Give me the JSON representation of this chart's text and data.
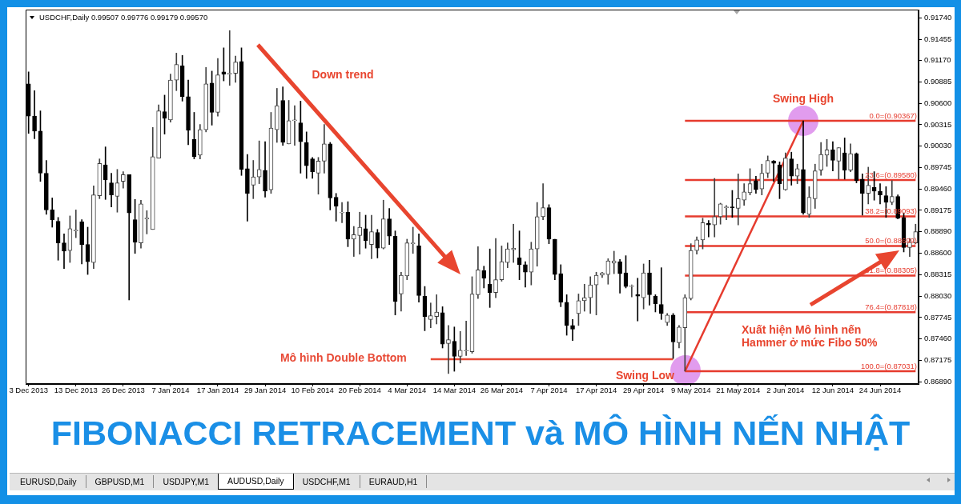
{
  "chart_data": {
    "type": "candlestick",
    "title": "FIBONACCI RETRACEMENT và MÔ HÌNH NẾN NHẬT",
    "categories": [
      "3 Dec 2013",
      null,
      null,
      null,
      null,
      null,
      null,
      null,
      "13 Dec 2013",
      null,
      null,
      null,
      null,
      null,
      null,
      null,
      "26 Dec 2013",
      null,
      null,
      null,
      null,
      null,
      null,
      null,
      "7 Jan 2014",
      null,
      null,
      null,
      null,
      null,
      null,
      null,
      "17 Jan 2014",
      null,
      null,
      null,
      null,
      null,
      null,
      null,
      "29 Jan 2014",
      null,
      null,
      null,
      null,
      null,
      null,
      null,
      "10 Feb 2014",
      null,
      null,
      null,
      null,
      null,
      null,
      null,
      "20 Feb 2014",
      null,
      null,
      null,
      null,
      null,
      null,
      null,
      "4 Mar 2014",
      null,
      null,
      null,
      null,
      null,
      null,
      null,
      "14 Mar 2014",
      null,
      null,
      null,
      null,
      null,
      null,
      null,
      "26 Mar 2014",
      null,
      null,
      null,
      null,
      null,
      null,
      null,
      "7 Apr 2014",
      null,
      null,
      null,
      null,
      null,
      null,
      null,
      "17 Apr 2014",
      null,
      null,
      null,
      null,
      null,
      null,
      null,
      "29 Apr 2014",
      null,
      null,
      null,
      null,
      null,
      null,
      null,
      "9 May 2014",
      null,
      null,
      null,
      null,
      null,
      null,
      null,
      "21 May 2014",
      null,
      null,
      null,
      null,
      null,
      null,
      null,
      "2 Jun 2014",
      null,
      null,
      null,
      null,
      null,
      null,
      null,
      "12 Jun 2014",
      null,
      null,
      null,
      null,
      null,
      null,
      null,
      "24 Jun 2014",
      null,
      null,
      null,
      null,
      null,
      null
    ],
    "ohlc": [
      [
        0.9086,
        0.9102,
        0.902,
        0.9043
      ],
      [
        0.9043,
        0.9077,
        0.9013,
        0.9023
      ],
      [
        0.9023,
        0.905,
        0.8956,
        0.8967
      ],
      [
        0.8967,
        0.8984,
        0.8912,
        0.8918
      ],
      [
        0.8918,
        0.8934,
        0.8895,
        0.8905
      ],
      [
        0.8903,
        0.8908,
        0.8851,
        0.8874
      ],
      [
        0.8874,
        0.8886,
        0.884,
        0.8863
      ],
      [
        0.8864,
        0.891,
        0.8848,
        0.8893
      ],
      [
        0.889,
        0.8918,
        0.8881,
        0.889
      ],
      [
        0.8902,
        0.8905,
        0.8846,
        0.8872
      ],
      [
        0.8872,
        0.8895,
        0.8832,
        0.8849
      ],
      [
        0.8848,
        0.895,
        0.884,
        0.8938
      ],
      [
        0.8937,
        0.8986,
        0.8933,
        0.898
      ],
      [
        0.8978,
        0.9002,
        0.8932,
        0.8958
      ],
      [
        0.8954,
        0.8967,
        0.8922,
        0.8938
      ],
      [
        0.8936,
        0.8972,
        0.8915,
        0.8954
      ],
      [
        0.8956,
        0.8969,
        0.8947,
        0.8965
      ],
      [
        0.8965,
        0.8965,
        0.8798,
        0.8914
      ],
      [
        0.8905,
        0.8932,
        0.886,
        0.8875
      ],
      [
        0.8874,
        0.8931,
        0.8867,
        0.8926
      ],
      [
        0.8906,
        0.8917,
        0.8886,
        0.8906
      ],
      [
        0.8892,
        0.9028,
        0.8892,
        0.8989
      ],
      [
        0.8987,
        0.9058,
        0.8987,
        0.905
      ],
      [
        0.9049,
        0.9071,
        0.9019,
        0.904
      ],
      [
        0.9038,
        0.9099,
        0.9035,
        0.9091
      ],
      [
        0.9091,
        0.9127,
        0.9077,
        0.9112
      ],
      [
        0.911,
        0.9124,
        0.9063,
        0.9069
      ],
      [
        0.9069,
        0.9091,
        0.9005,
        0.9024
      ],
      [
        0.9012,
        0.9048,
        0.8986,
        0.8989
      ],
      [
        0.8991,
        0.9032,
        0.8986,
        0.9025
      ],
      [
        0.9025,
        0.9108,
        0.9022,
        0.9086
      ],
      [
        0.9087,
        0.9103,
        0.9031,
        0.9048
      ],
      [
        0.9048,
        0.912,
        0.9043,
        0.9098
      ],
      [
        0.9102,
        0.9134,
        0.909,
        0.9099
      ],
      [
        0.9099,
        0.9157,
        0.9084,
        0.9099
      ],
      [
        0.91,
        0.9123,
        0.9088,
        0.9115
      ],
      [
        0.9116,
        0.9134,
        0.8964,
        0.8972
      ],
      [
        0.8973,
        0.8992,
        0.8903,
        0.894
      ],
      [
        0.8951,
        0.8984,
        0.8933,
        0.8962
      ],
      [
        0.8962,
        0.901,
        0.8953,
        0.8972
      ],
      [
        0.8971,
        0.9009,
        0.8935,
        0.8943
      ],
      [
        0.8945,
        0.9048,
        0.894,
        0.9027
      ],
      [
        0.9025,
        0.908,
        0.9008,
        0.9057
      ],
      [
        0.9064,
        0.9082,
        0.9004,
        0.9008
      ],
      [
        0.9006,
        0.9064,
        0.9006,
        0.9037
      ],
      [
        0.9037,
        0.9057,
        0.9004,
        0.9037
      ],
      [
        0.9034,
        0.9063,
        0.8967,
        0.9009
      ],
      [
        0.9008,
        0.9022,
        0.896,
        0.8977
      ],
      [
        0.8986,
        0.8988,
        0.896,
        0.8969
      ],
      [
        0.8967,
        0.8988,
        0.8939,
        0.8983
      ],
      [
        0.8983,
        0.9032,
        0.8967,
        0.9006
      ],
      [
        0.9006,
        0.9008,
        0.8918,
        0.8934
      ],
      [
        0.8935,
        0.894,
        0.8903,
        0.8923
      ],
      [
        0.8914,
        0.8928,
        0.8901,
        0.8914
      ],
      [
        0.8915,
        0.8929,
        0.8869,
        0.8879
      ],
      [
        0.8879,
        0.8896,
        0.8856,
        0.8885
      ],
      [
        0.8884,
        0.8915,
        0.8859,
        0.8895
      ],
      [
        0.8893,
        0.8911,
        0.8867,
        0.8877
      ],
      [
        0.8872,
        0.8911,
        0.8853,
        0.8889
      ],
      [
        0.8888,
        0.8892,
        0.8854,
        0.8867
      ],
      [
        0.8867,
        0.8931,
        0.8866,
        0.8906
      ],
      [
        0.8906,
        0.892,
        0.8872,
        0.8883
      ],
      [
        0.8883,
        0.889,
        0.8778,
        0.8796
      ],
      [
        0.8806,
        0.8835,
        0.8783,
        0.8831
      ],
      [
        0.883,
        0.8879,
        0.8825,
        0.8874
      ],
      [
        0.8873,
        0.8895,
        0.886,
        0.8873
      ],
      [
        0.887,
        0.8886,
        0.8795,
        0.8804
      ],
      [
        0.8803,
        0.8816,
        0.8757,
        0.8776
      ],
      [
        0.8772,
        0.8794,
        0.8761,
        0.8777
      ],
      [
        0.8776,
        0.8805,
        0.8766,
        0.8782
      ],
      [
        0.8781,
        0.8789,
        0.8734,
        0.8739
      ],
      [
        0.874,
        0.8764,
        0.87,
        0.8745
      ],
      [
        0.8743,
        0.8762,
        0.8703,
        0.8723
      ],
      [
        0.8723,
        0.8756,
        0.8714,
        0.8731
      ],
      [
        0.873,
        0.877,
        0.8724,
        0.873
      ],
      [
        0.8729,
        0.8829,
        0.8727,
        0.8806
      ],
      [
        0.8805,
        0.8869,
        0.88,
        0.8838
      ],
      [
        0.8837,
        0.8843,
        0.8814,
        0.8827
      ],
      [
        0.8819,
        0.8866,
        0.8788,
        0.8808
      ],
      [
        0.8808,
        0.888,
        0.8801,
        0.8825
      ],
      [
        0.8825,
        0.887,
        0.8823,
        0.8849
      ],
      [
        0.8848,
        0.8874,
        0.8841,
        0.8866
      ],
      [
        0.8865,
        0.8899,
        0.8848,
        0.8867
      ],
      [
        0.8854,
        0.889,
        0.8825,
        0.8845
      ],
      [
        0.8845,
        0.8849,
        0.8815,
        0.8835
      ],
      [
        0.8835,
        0.8875,
        0.8818,
        0.8866
      ],
      [
        0.8866,
        0.8928,
        0.8843,
        0.8909
      ],
      [
        0.8909,
        0.8953,
        0.8905,
        0.8921
      ],
      [
        0.8921,
        0.8925,
        0.8873,
        0.8879
      ],
      [
        0.8879,
        0.8879,
        0.8825,
        0.8832
      ],
      [
        0.8833,
        0.8845,
        0.8789,
        0.8795
      ],
      [
        0.8795,
        0.8805,
        0.8751,
        0.8764
      ],
      [
        0.8764,
        0.8772,
        0.8744,
        0.8759
      ],
      [
        0.878,
        0.8806,
        0.8764,
        0.8797
      ],
      [
        0.8797,
        0.8819,
        0.8783,
        0.8801
      ],
      [
        0.8801,
        0.8829,
        0.878,
        0.8818
      ],
      [
        0.8818,
        0.8835,
        0.8778,
        0.8831
      ],
      [
        0.8831,
        0.8835,
        0.8828,
        0.8834
      ],
      [
        0.8832,
        0.8853,
        0.8819,
        0.885
      ],
      [
        0.8847,
        0.8863,
        0.8833,
        0.885
      ],
      [
        0.8849,
        0.8852,
        0.8807,
        0.8833
      ],
      [
        0.8834,
        0.8857,
        0.8814,
        0.8816
      ],
      [
        0.8816,
        0.8818,
        0.8802,
        0.8816
      ],
      [
        0.8805,
        0.8827,
        0.877,
        0.8803
      ],
      [
        0.8801,
        0.8846,
        0.8786,
        0.8834
      ],
      [
        0.8834,
        0.8851,
        0.8791,
        0.8805
      ],
      [
        0.8803,
        0.8805,
        0.8782,
        0.8793
      ],
      [
        0.8792,
        0.8841,
        0.8772,
        0.878
      ],
      [
        0.8768,
        0.878,
        0.8764,
        0.8778
      ],
      [
        0.8778,
        0.878,
        0.872,
        0.8742
      ],
      [
        0.8741,
        0.8764,
        0.8734,
        0.8762
      ],
      [
        0.8761,
        0.8805,
        0.87031,
        0.8801
      ],
      [
        0.88,
        0.8873,
        0.8798,
        0.8864
      ],
      [
        0.8864,
        0.8882,
        0.8859,
        0.8878
      ],
      [
        0.8878,
        0.8907,
        0.8866,
        0.8901
      ],
      [
        0.89,
        0.8904,
        0.8882,
        0.8898
      ],
      [
        0.8898,
        0.896,
        0.8882,
        0.8909
      ],
      [
        0.8909,
        0.8927,
        0.8899,
        0.8926
      ],
      [
        0.8921,
        0.8924,
        0.8905,
        0.8922
      ],
      [
        0.8922,
        0.8944,
        0.8908,
        0.8921
      ],
      [
        0.892,
        0.8966,
        0.8898,
        0.8933
      ],
      [
        0.8931,
        0.8953,
        0.8924,
        0.8942
      ],
      [
        0.8941,
        0.8973,
        0.8938,
        0.8953
      ],
      [
        0.8957,
        0.8963,
        0.894,
        0.8945
      ],
      [
        0.8946,
        0.8979,
        0.8938,
        0.8967
      ],
      [
        0.8967,
        0.899,
        0.8961,
        0.8984
      ],
      [
        0.8983,
        0.8984,
        0.8956,
        0.898
      ],
      [
        0.8978,
        0.8982,
        0.8933,
        0.8953
      ],
      [
        0.8945,
        0.8994,
        0.8944,
        0.8987
      ],
      [
        0.8986,
        0.8995,
        0.8951,
        0.8963
      ],
      [
        0.8963,
        0.8979,
        0.8953,
        0.8973
      ],
      [
        0.8972,
        0.90367,
        0.8912,
        0.8914
      ],
      [
        0.8912,
        0.8949,
        0.8908,
        0.8935
      ],
      [
        0.8933,
        0.8979,
        0.892,
        0.897
      ],
      [
        0.8971,
        0.9008,
        0.8964,
        0.8992
      ],
      [
        0.8991,
        0.9012,
        0.8976,
        0.8998
      ],
      [
        0.8998,
        0.9009,
        0.897,
        0.8984
      ],
      [
        0.8983,
        0.9001,
        0.8959,
        0.9001
      ],
      [
        0.8994,
        0.9014,
        0.8959,
        0.8971
      ],
      [
        0.8971,
        0.9006,
        0.8969,
        0.8993
      ],
      [
        0.8993,
        0.8994,
        0.8954,
        0.8957
      ],
      [
        0.8959,
        0.8966,
        0.8911,
        0.894
      ],
      [
        0.894,
        0.8975,
        0.8926,
        0.8951
      ],
      [
        0.8948,
        0.8969,
        0.8931,
        0.8943
      ],
      [
        0.8943,
        0.8953,
        0.8926,
        0.8938
      ],
      [
        0.8937,
        0.8949,
        0.8908,
        0.8928
      ],
      [
        0.8928,
        0.8957,
        0.8925,
        0.8936
      ],
      [
        0.8936,
        0.8938,
        0.8906,
        0.8907
      ],
      [
        0.8908,
        0.8914,
        0.8862,
        0.8868
      ],
      [
        0.8868,
        0.888,
        0.8856,
        0.8875
      ],
      [
        0.8874,
        0.8899,
        0.8873,
        0.8889
      ]
    ],
    "series": [
      {
        "type": "line",
        "name": "0.0=(0.90367)",
        "color": "#e63b2e",
        "values": [
          null,
          null,
          null,
          null,
          null,
          null,
          null,
          null,
          null,
          null,
          null,
          null,
          null,
          null,
          null,
          null,
          null,
          null,
          null,
          null,
          null,
          null,
          null,
          null,
          null,
          null,
          null,
          null,
          null,
          null,
          null,
          null,
          null,
          null,
          null,
          null,
          null,
          null,
          null,
          null,
          null,
          null,
          null,
          null,
          null,
          null,
          null,
          null,
          null,
          null,
          null,
          null,
          null,
          null,
          null,
          null,
          null,
          null,
          null,
          null,
          null,
          null,
          null,
          null,
          null,
          null,
          null,
          null,
          null,
          null,
          null,
          null,
          null,
          null,
          null,
          null,
          null,
          null,
          null,
          null,
          null,
          null,
          null,
          null,
          null,
          null,
          null,
          null,
          null,
          null,
          null,
          null,
          null,
          null,
          null,
          null,
          null,
          null,
          null,
          null,
          null,
          null,
          null,
          null,
          null,
          null,
          null,
          null,
          null,
          null,
          null,
          0.90367,
          0.90367,
          0.90367,
          0.90367,
          0.90367,
          0.90367,
          0.90367,
          0.90367,
          0.90367,
          0.90367,
          0.90367,
          0.90367,
          0.90367,
          0.90367,
          0.90367,
          0.90367,
          0.90367,
          0.90367,
          0.90367,
          0.90367,
          0.90367,
          0.90367,
          0.90367,
          0.90367,
          0.90367,
          0.90367,
          0.90367,
          0.90367,
          0.90367,
          0.90367,
          0.90367,
          0.90367,
          0.90367,
          0.90367,
          0.90367,
          0.90367,
          0.90367,
          0.90367,
          0.90367,
          0.90367
        ]
      },
      {
        "type": "line",
        "name": "23.6=(0.89580)",
        "color": "#e63b2e",
        "values": [
          null,
          null,
          null,
          null,
          null,
          null,
          null,
          null,
          null,
          null,
          null,
          null,
          null,
          null,
          null,
          null,
          null,
          null,
          null,
          null,
          null,
          null,
          null,
          null,
          null,
          null,
          null,
          null,
          null,
          null,
          null,
          null,
          null,
          null,
          null,
          null,
          null,
          null,
          null,
          null,
          null,
          null,
          null,
          null,
          null,
          null,
          null,
          null,
          null,
          null,
          null,
          null,
          null,
          null,
          null,
          null,
          null,
          null,
          null,
          null,
          null,
          null,
          null,
          null,
          null,
          null,
          null,
          null,
          null,
          null,
          null,
          null,
          null,
          null,
          null,
          null,
          null,
          null,
          null,
          null,
          null,
          null,
          null,
          null,
          null,
          null,
          null,
          null,
          null,
          null,
          null,
          null,
          null,
          null,
          null,
          null,
          null,
          null,
          null,
          null,
          null,
          null,
          null,
          null,
          null,
          null,
          null,
          null,
          null,
          null,
          null,
          0.8958,
          0.8958,
          0.8958,
          0.8958,
          0.8958,
          0.8958,
          0.8958,
          0.8958,
          0.8958,
          0.8958,
          0.8958,
          0.8958,
          0.8958,
          0.8958,
          0.8958,
          0.8958,
          0.8958,
          0.8958,
          0.8958,
          0.8958,
          0.8958,
          0.8958,
          0.8958,
          0.8958,
          0.8958,
          0.8958,
          0.8958,
          0.8958,
          0.8958,
          0.8958,
          0.8958,
          0.8958,
          0.8958,
          0.8958,
          0.8958,
          0.8958,
          0.8958,
          0.8958,
          0.8958,
          0.8958
        ]
      },
      {
        "type": "line",
        "name": "38.2=(0.89093)",
        "color": "#e63b2e",
        "values": [
          null,
          null,
          null,
          null,
          null,
          null,
          null,
          null,
          null,
          null,
          null,
          null,
          null,
          null,
          null,
          null,
          null,
          null,
          null,
          null,
          null,
          null,
          null,
          null,
          null,
          null,
          null,
          null,
          null,
          null,
          null,
          null,
          null,
          null,
          null,
          null,
          null,
          null,
          null,
          null,
          null,
          null,
          null,
          null,
          null,
          null,
          null,
          null,
          null,
          null,
          null,
          null,
          null,
          null,
          null,
          null,
          null,
          null,
          null,
          null,
          null,
          null,
          null,
          null,
          null,
          null,
          null,
          null,
          null,
          null,
          null,
          null,
          null,
          null,
          null,
          null,
          null,
          null,
          null,
          null,
          null,
          null,
          null,
          null,
          null,
          null,
          null,
          null,
          null,
          null,
          null,
          null,
          null,
          null,
          null,
          null,
          null,
          null,
          null,
          null,
          null,
          null,
          null,
          null,
          null,
          null,
          null,
          null,
          null,
          null,
          null,
          0.89093,
          0.89093,
          0.89093,
          0.89093,
          0.89093,
          0.89093,
          0.89093,
          0.89093,
          0.89093,
          0.89093,
          0.89093,
          0.89093,
          0.89093,
          0.89093,
          0.89093,
          0.89093,
          0.89093,
          0.89093,
          0.89093,
          0.89093,
          0.89093,
          0.89093,
          0.89093,
          0.89093,
          0.89093,
          0.89093,
          0.89093,
          0.89093,
          0.89093,
          0.89093,
          0.89093,
          0.89093,
          0.89093,
          0.89093,
          0.89093,
          0.89093,
          0.89093,
          0.89093,
          0.89093,
          0.89093
        ]
      },
      {
        "type": "line",
        "name": "50.0=(0.88699)",
        "color": "#e63b2e",
        "values": [
          null,
          null,
          null,
          null,
          null,
          null,
          null,
          null,
          null,
          null,
          null,
          null,
          null,
          null,
          null,
          null,
          null,
          null,
          null,
          null,
          null,
          null,
          null,
          null,
          null,
          null,
          null,
          null,
          null,
          null,
          null,
          null,
          null,
          null,
          null,
          null,
          null,
          null,
          null,
          null,
          null,
          null,
          null,
          null,
          null,
          null,
          null,
          null,
          null,
          null,
          null,
          null,
          null,
          null,
          null,
          null,
          null,
          null,
          null,
          null,
          null,
          null,
          null,
          null,
          null,
          null,
          null,
          null,
          null,
          null,
          null,
          null,
          null,
          null,
          null,
          null,
          null,
          null,
          null,
          null,
          null,
          null,
          null,
          null,
          null,
          null,
          null,
          null,
          null,
          null,
          null,
          null,
          null,
          null,
          null,
          null,
          null,
          null,
          null,
          null,
          null,
          null,
          null,
          null,
          null,
          null,
          null,
          null,
          null,
          null,
          null,
          0.88699,
          0.88699,
          0.88699,
          0.88699,
          0.88699,
          0.88699,
          0.88699,
          0.88699,
          0.88699,
          0.88699,
          0.88699,
          0.88699,
          0.88699,
          0.88699,
          0.88699,
          0.88699,
          0.88699,
          0.88699,
          0.88699,
          0.88699,
          0.88699,
          0.88699,
          0.88699,
          0.88699,
          0.88699,
          0.88699,
          0.88699,
          0.88699,
          0.88699,
          0.88699,
          0.88699,
          0.88699,
          0.88699,
          0.88699,
          0.88699,
          0.88699,
          0.88699,
          0.88699,
          0.88699,
          0.88699
        ]
      },
      {
        "type": "line",
        "name": "61.8=(0.88305)",
        "color": "#e63b2e",
        "values": [
          null,
          null,
          null,
          null,
          null,
          null,
          null,
          null,
          null,
          null,
          null,
          null,
          null,
          null,
          null,
          null,
          null,
          null,
          null,
          null,
          null,
          null,
          null,
          null,
          null,
          null,
          null,
          null,
          null,
          null,
          null,
          null,
          null,
          null,
          null,
          null,
          null,
          null,
          null,
          null,
          null,
          null,
          null,
          null,
          null,
          null,
          null,
          null,
          null,
          null,
          null,
          null,
          null,
          null,
          null,
          null,
          null,
          null,
          null,
          null,
          null,
          null,
          null,
          null,
          null,
          null,
          null,
          null,
          null,
          null,
          null,
          null,
          null,
          null,
          null,
          null,
          null,
          null,
          null,
          null,
          null,
          null,
          null,
          null,
          null,
          null,
          null,
          null,
          null,
          null,
          null,
          null,
          null,
          null,
          null,
          null,
          null,
          null,
          null,
          null,
          null,
          null,
          null,
          null,
          null,
          null,
          null,
          null,
          null,
          null,
          null,
          0.88305,
          0.88305,
          0.88305,
          0.88305,
          0.88305,
          0.88305,
          0.88305,
          0.88305,
          0.88305,
          0.88305,
          0.88305,
          0.88305,
          0.88305,
          0.88305,
          0.88305,
          0.88305,
          0.88305,
          0.88305,
          0.88305,
          0.88305,
          0.88305,
          0.88305,
          0.88305,
          0.88305,
          0.88305,
          0.88305,
          0.88305,
          0.88305,
          0.88305,
          0.88305,
          0.88305,
          0.88305,
          0.88305,
          0.88305,
          0.88305,
          0.88305,
          0.88305,
          0.88305,
          0.88305,
          0.88305
        ]
      },
      {
        "type": "line",
        "name": "76.4=(0.87818)",
        "color": "#e63b2e",
        "values": [
          null,
          null,
          null,
          null,
          null,
          null,
          null,
          null,
          null,
          null,
          null,
          null,
          null,
          null,
          null,
          null,
          null,
          null,
          null,
          null,
          null,
          null,
          null,
          null,
          null,
          null,
          null,
          null,
          null,
          null,
          null,
          null,
          null,
          null,
          null,
          null,
          null,
          null,
          null,
          null,
          null,
          null,
          null,
          null,
          null,
          null,
          null,
          null,
          null,
          null,
          null,
          null,
          null,
          null,
          null,
          null,
          null,
          null,
          null,
          null,
          null,
          null,
          null,
          null,
          null,
          null,
          null,
          null,
          null,
          null,
          null,
          null,
          null,
          null,
          null,
          null,
          null,
          null,
          null,
          null,
          null,
          null,
          null,
          null,
          null,
          null,
          null,
          null,
          null,
          null,
          null,
          null,
          null,
          null,
          null,
          null,
          null,
          null,
          null,
          null,
          null,
          null,
          null,
          null,
          null,
          null,
          null,
          null,
          null,
          null,
          null,
          0.87818,
          0.87818,
          0.87818,
          0.87818,
          0.87818,
          0.87818,
          0.87818,
          0.87818,
          0.87818,
          0.87818,
          0.87818,
          0.87818,
          0.87818,
          0.87818,
          0.87818,
          0.87818,
          0.87818,
          0.87818,
          0.87818,
          0.87818,
          0.87818,
          0.87818,
          0.87818,
          0.87818,
          0.87818,
          0.87818,
          0.87818,
          0.87818,
          0.87818,
          0.87818,
          0.87818,
          0.87818,
          0.87818,
          0.87818,
          0.87818,
          0.87818,
          0.87818,
          0.87818,
          0.87818,
          0.87818
        ]
      },
      {
        "type": "line",
        "name": "100.0=(0.87031)",
        "color": "#e63b2e",
        "values": [
          null,
          null,
          null,
          null,
          null,
          null,
          null,
          null,
          null,
          null,
          null,
          null,
          null,
          null,
          null,
          null,
          null,
          null,
          null,
          null,
          null,
          null,
          null,
          null,
          null,
          null,
          null,
          null,
          null,
          null,
          null,
          null,
          null,
          null,
          null,
          null,
          null,
          null,
          null,
          null,
          null,
          null,
          null,
          null,
          null,
          null,
          null,
          null,
          null,
          null,
          null,
          null,
          null,
          null,
          null,
          null,
          null,
          null,
          null,
          null,
          null,
          null,
          null,
          null,
          null,
          null,
          null,
          null,
          null,
          null,
          null,
          null,
          null,
          null,
          null,
          null,
          null,
          null,
          null,
          null,
          null,
          null,
          null,
          null,
          null,
          null,
          null,
          null,
          null,
          null,
          null,
          null,
          null,
          null,
          null,
          null,
          null,
          null,
          null,
          null,
          null,
          null,
          null,
          null,
          null,
          null,
          null,
          null,
          null,
          null,
          null,
          0.87031,
          0.87031,
          0.87031,
          0.87031,
          0.87031,
          0.87031,
          0.87031,
          0.87031,
          0.87031,
          0.87031,
          0.87031,
          0.87031,
          0.87031,
          0.87031,
          0.87031,
          0.87031,
          0.87031,
          0.87031,
          0.87031,
          0.87031,
          0.87031,
          0.87031,
          0.87031,
          0.87031,
          0.87031,
          0.87031,
          0.87031,
          0.87031,
          0.87031,
          0.87031,
          0.87031,
          0.87031,
          0.87031,
          0.87031,
          0.87031,
          0.87031,
          0.87031,
          0.87031,
          0.87031,
          0.87031
        ]
      },
      {
        "type": "line",
        "name": "Mô hình Double Bottom",
        "color": "#e84a36",
        "values": [
          null,
          null,
          null,
          null,
          null,
          null,
          null,
          null,
          null,
          null,
          null,
          null,
          null,
          null,
          null,
          null,
          null,
          null,
          null,
          null,
          null,
          null,
          null,
          null,
          null,
          null,
          null,
          null,
          null,
          null,
          null,
          null,
          null,
          null,
          null,
          null,
          null,
          null,
          null,
          null,
          null,
          null,
          null,
          null,
          null,
          null,
          null,
          null,
          null,
          null,
          null,
          null,
          null,
          null,
          null,
          null,
          null,
          null,
          null,
          null,
          null,
          null,
          null,
          null,
          null,
          null,
          null,
          null,
          0.8719,
          0.8719,
          0.8719,
          0.8719,
          0.8719,
          0.8719,
          0.8719,
          0.8719,
          0.8719,
          0.8719,
          0.8719,
          0.8719,
          0.8719,
          0.8719,
          0.8719,
          0.8719,
          0.8719,
          0.8719,
          0.8719,
          0.8719,
          0.8719,
          0.8719,
          0.8719,
          0.8719,
          0.8719,
          0.8719,
          0.8719,
          0.8719,
          0.8719,
          0.8719,
          0.8719,
          0.8719,
          0.8719,
          0.8719,
          0.8719,
          0.8719,
          0.8719,
          0.8719,
          0.8719,
          0.8719,
          0.8719,
          0.8719,
          null,
          null,
          null,
          null,
          null,
          null,
          null,
          null,
          null,
          null,
          null,
          null,
          null,
          null,
          null,
          null,
          null,
          null,
          null,
          null,
          null,
          null,
          null,
          null,
          null,
          null,
          null,
          null,
          null,
          null,
          null,
          null,
          null,
          null,
          null,
          null,
          null,
          null,
          null,
          null,
          null
        ]
      },
      {
        "type": "line",
        "color": "#e63b2e",
        "values": [
          null,
          null,
          null,
          null,
          null,
          null,
          null,
          null,
          null,
          null,
          null,
          null,
          null,
          null,
          null,
          null,
          null,
          null,
          null,
          null,
          null,
          null,
          null,
          null,
          null,
          null,
          null,
          null,
          null,
          null,
          null,
          null,
          null,
          null,
          null,
          null,
          null,
          null,
          null,
          null,
          null,
          null,
          null,
          null,
          null,
          null,
          null,
          null,
          null,
          null,
          null,
          null,
          null,
          null,
          null,
          null,
          null,
          null,
          null,
          null,
          null,
          null,
          null,
          null,
          null,
          null,
          null,
          null,
          null,
          null,
          null,
          null,
          null,
          null,
          null,
          null,
          null,
          null,
          null,
          null,
          null,
          null,
          null,
          null,
          null,
          null,
          null,
          null,
          null,
          null,
          null,
          null,
          null,
          null,
          null,
          null,
          null,
          null,
          null,
          null,
          null,
          null,
          null,
          null,
          null,
          null,
          null,
          null,
          null,
          null,
          null,
          0.87031,
          null,
          null,
          null,
          null,
          null,
          null,
          null,
          null,
          null,
          null,
          null,
          null,
          null,
          null,
          null,
          null,
          null,
          null,
          null,
          0.90367,
          null,
          null,
          null,
          null,
          null,
          null,
          null,
          null,
          null,
          null,
          null,
          null,
          null,
          null,
          null,
          null,
          null,
          null,
          null
        ]
      }
    ],
    "ylim": [
      0.8686,
      0.9185
    ],
    "yticks": [
      {
        "value": 0.9174,
        "label": "0.91740"
      },
      0.91455,
      {
        "value": 0.9117,
        "label": "0.91170"
      },
      0.90885,
      {
        "value": 0.906,
        "label": "0.90600"
      },
      0.90315,
      {
        "value": 0.9003,
        "label": "0.90030"
      },
      0.89745,
      {
        "value": 0.8946,
        "label": "0.89460"
      },
      0.89175,
      {
        "value": 0.8889,
        "label": "0.88890"
      },
      {
        "value": 0.886,
        "label": "0.88600"
      },
      0.88315,
      {
        "value": 0.8803,
        "label": "0.88030"
      },
      0.87745,
      {
        "value": 0.8746,
        "label": "0.87460"
      },
      0.87175,
      {
        "value": 0.8689,
        "label": "0.86890"
      }
    ],
    "annotations": [
      "USDCHF,Daily 0.99507 0.99776 0.99179 0.99570",
      "Down trend",
      {
        "text": "Swing High",
        "y": 0.90367
      },
      "Swing Low",
      "Xuất hiện Mô hình nến Hammer ở mức Fibo 50%",
      "EURUSD,Daily",
      "GBPUSD,M1",
      "USDJPY,M1",
      "AUDUSD,Daily",
      "USDCHF,M1",
      "EURAUD,H1"
    ]
  }
}
